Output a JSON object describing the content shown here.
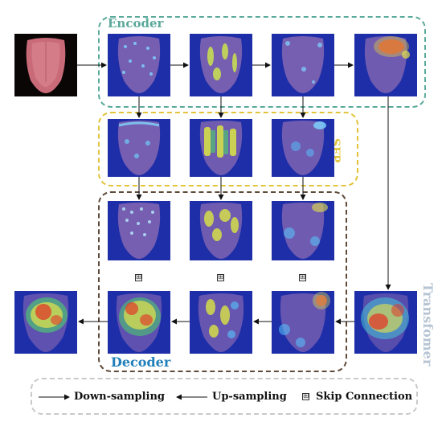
{
  "regions": {
    "encoder": {
      "label": "Encoder",
      "color": "#5aa99a"
    },
    "sfp": {
      "label": "SFP",
      "color": "#e2c43a"
    },
    "decoder": {
      "label": "Decoder",
      "color": "#5e4a3a",
      "label_color": "#1f7fb8"
    },
    "transformer": {
      "label": "Transfomer",
      "color": "#b6c4d3"
    }
  },
  "images": {
    "input": "tongue-photo",
    "feature": "attention-heatmap-overlay",
    "output": "segmentation-heatmap-output"
  },
  "legend": {
    "down_sampling": "Down-sampling",
    "up_sampling": "Up-sampling",
    "skip_connection": "Skip Connection"
  },
  "symbols": {
    "skip": "⊞"
  },
  "colors": {
    "heatmap_base": "#1e2ea8",
    "tongue_tint": "#c087b8",
    "photo_bg": "#0a0606",
    "photo_tongue": "#c96a78",
    "arrow": "#111111"
  }
}
